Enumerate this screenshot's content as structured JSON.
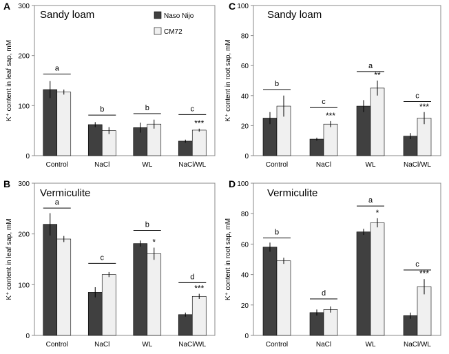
{
  "colors": {
    "naso_nijo": "#404040",
    "cm72": "#f0f0f0",
    "outline": "#000000",
    "axis": "#888888"
  },
  "legend": [
    "Naso Nijo",
    "CM72"
  ],
  "chart_data": [
    {
      "type": "bar",
      "panel": "A",
      "title": "Sandy loam",
      "ylabel": "K⁺ content in leaf sap, mM",
      "categories": [
        "Control",
        "NaCl",
        "WL",
        "NaCl/WL"
      ],
      "ylim": [
        0,
        300
      ],
      "yticks": [
        "0",
        "100",
        "200",
        "300"
      ],
      "ytick_values": [
        0,
        100,
        200,
        300
      ],
      "series": [
        {
          "name": "Naso Nijo",
          "values": [
            132,
            62,
            56,
            29
          ],
          "errors": [
            17,
            5,
            10,
            3
          ]
        },
        {
          "name": "CM72",
          "values": [
            127,
            50,
            63,
            51
          ],
          "errors": [
            5,
            7,
            9,
            3
          ]
        }
      ],
      "letters": [
        "a",
        "b",
        "b",
        "c"
      ],
      "letter_heights": [
        163,
        81,
        84,
        82
      ],
      "stars": [
        "",
        "",
        "",
        "***"
      ]
    },
    {
      "type": "bar",
      "panel": "B",
      "title": "Vermiculite",
      "ylabel": "K⁺ content in leaf sap, mM",
      "categories": [
        "Control",
        "NaCl",
        "WL",
        "NaCl/WL"
      ],
      "ylim": [
        0,
        300
      ],
      "yticks": [
        "0",
        "100",
        "200",
        "300"
      ],
      "ytick_values": [
        0,
        100,
        200,
        300
      ],
      "series": [
        {
          "name": "Naso Nijo",
          "values": [
            219,
            85,
            181,
            41
          ],
          "errors": [
            22,
            10,
            6,
            4
          ]
        },
        {
          "name": "CM72",
          "values": [
            190,
            120,
            161,
            77
          ],
          "errors": [
            6,
            5,
            12,
            5
          ]
        }
      ],
      "letters": [
        "a",
        "c",
        "b",
        "d"
      ],
      "letter_heights": [
        251,
        142,
        207,
        104
      ],
      "stars": [
        "",
        "",
        "*",
        "***"
      ]
    },
    {
      "type": "bar",
      "panel": "C",
      "title": "Sandy loam",
      "ylabel": "K⁺ content in root sap, mM",
      "categories": [
        "Control",
        "NaCl",
        "WL",
        "NaCl/WL"
      ],
      "ylim": [
        0,
        100
      ],
      "yticks": [
        "0",
        "20",
        "40",
        "60",
        "80",
        "100"
      ],
      "ytick_values": [
        0,
        20,
        40,
        60,
        80,
        100
      ],
      "series": [
        {
          "name": "Naso Nijo",
          "values": [
            25,
            11,
            33,
            13
          ],
          "errors": [
            4,
            1,
            4,
            2
          ]
        },
        {
          "name": "CM72",
          "values": [
            33,
            21,
            45,
            25
          ],
          "errors": [
            7,
            2,
            5,
            4
          ]
        }
      ],
      "letters": [
        "b",
        "c",
        "a",
        "c"
      ],
      "letter_heights": [
        44,
        32,
        56,
        36
      ],
      "stars": [
        "",
        "***",
        "**",
        "***"
      ]
    },
    {
      "type": "bar",
      "panel": "D",
      "title": "Vermiculite",
      "ylabel": "K⁺ content in root sap, mM",
      "categories": [
        "Control",
        "NaCl",
        "WL",
        "NaCl/WL"
      ],
      "ylim": [
        0,
        100
      ],
      "yticks": [
        "0",
        "20",
        "40",
        "60",
        "80",
        "100"
      ],
      "ytick_values": [
        0,
        20,
        40,
        60,
        80,
        100
      ],
      "series": [
        {
          "name": "Naso Nijo",
          "values": [
            58,
            15,
            68,
            13
          ],
          "errors": [
            3,
            2,
            2,
            2
          ]
        },
        {
          "name": "CM72",
          "values": [
            49,
            17,
            74,
            32
          ],
          "errors": [
            2,
            2,
            3,
            5
          ]
        }
      ],
      "letters": [
        "b",
        "d",
        "a",
        "c"
      ],
      "letter_heights": [
        64,
        24,
        85,
        43
      ],
      "stars": [
        "",
        "",
        "*",
        "***"
      ]
    }
  ]
}
